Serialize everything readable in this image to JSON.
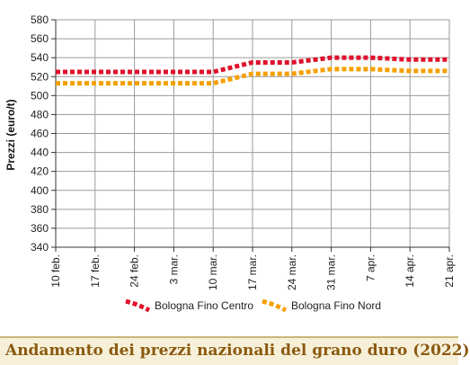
{
  "chart_data": {
    "type": "line",
    "title": "Andamento dei prezzi nazionali del grano duro (2022)",
    "ylabel": "Prezzi (euro/t)",
    "xlabel": "",
    "ylim": [
      340,
      580
    ],
    "yticks": [
      340,
      360,
      380,
      400,
      420,
      440,
      460,
      480,
      500,
      520,
      540,
      560,
      580
    ],
    "categories": [
      "10 feb.",
      "17 feb.",
      "24 feb.",
      "3 mar.",
      "10 mar.",
      "17 mar.",
      "24 mar.",
      "31 mar.",
      "7 apr.",
      "14 apr.",
      "21 apr."
    ],
    "grid": true,
    "legend_position": "bottom",
    "series": [
      {
        "name": "Bologna Fino Centro",
        "color": "#e0102a",
        "values": [
          525,
          525,
          525,
          525,
          525,
          535,
          535,
          540,
          540,
          538,
          538
        ]
      },
      {
        "name": "Bologna Fino Nord",
        "color": "#f5a000",
        "values": [
          513,
          513,
          513,
          513,
          513,
          523,
          523,
          528,
          528,
          526,
          526
        ]
      }
    ]
  }
}
